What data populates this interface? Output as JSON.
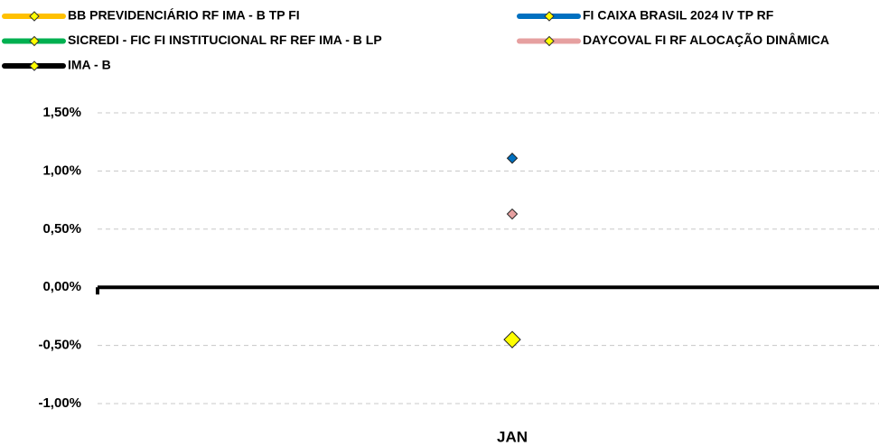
{
  "chart_data": {
    "type": "line",
    "categories": [
      "JAN"
    ],
    "series": [
      {
        "name": "BB PREVIDENCIÁRIO RF IMA - B TP FI",
        "color": "#ffc000",
        "values": [
          -0.46
        ]
      },
      {
        "name": "FI CAIXA BRASIL 2024 IV TP RF",
        "color": "#0070c0",
        "values": [
          1.11
        ]
      },
      {
        "name": "SICREDI - FIC FI INSTITUCIONAL RF REF IMA - B LP",
        "color": "#00b050",
        "values": [
          -0.47
        ]
      },
      {
        "name": "DAYCOVAL FI RF ALOCAÇÃO DINÂMICA",
        "color": "#e6a0a0",
        "values": [
          0.63
        ]
      },
      {
        "name": "IMA - B",
        "color": "#000000",
        "marker_color": "#ffff00",
        "values": [
          -0.45
        ]
      }
    ],
    "ylim": [
      -1.0,
      1.5
    ],
    "yticks": [
      {
        "value": -1.0,
        "label": "-1,00%"
      },
      {
        "value": -0.5,
        "label": "-0,50%"
      },
      {
        "value": 0,
        "label": "0,00%"
      },
      {
        "value": 0.5,
        "label": "0,50%"
      },
      {
        "value": 1.0,
        "label": "1,00%"
      },
      {
        "value": 1.5,
        "label": "1,50%"
      }
    ],
    "grid": true
  }
}
